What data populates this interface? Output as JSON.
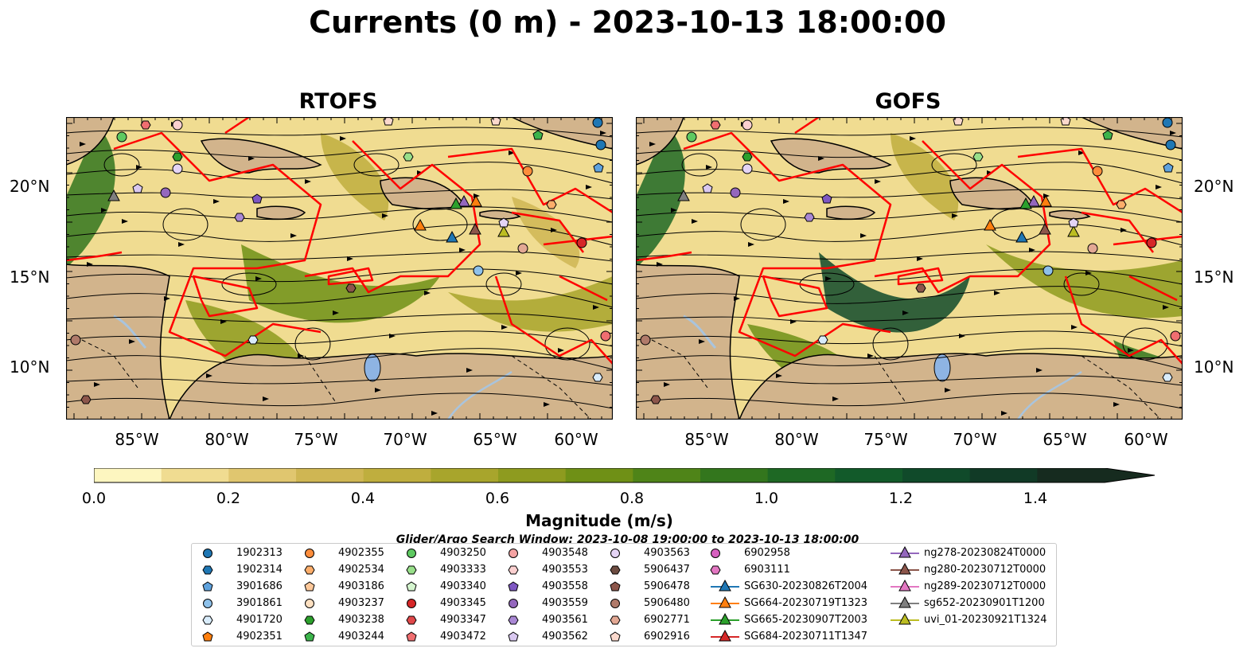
{
  "title": "Currents (0 m) - 2023-10-13 18:00:00",
  "panels": [
    {
      "title": "RTOFS"
    },
    {
      "title": "GOFS"
    }
  ],
  "axes": {
    "lat_labels": [
      "20°N",
      "15°N",
      "10°N"
    ],
    "lon_labels": [
      "85°W",
      "80°W",
      "75°W",
      "70°W",
      "65°W",
      "60°W"
    ]
  },
  "colorbar": {
    "label": "Magnitude (m/s)",
    "ticks": [
      "0.0",
      "0.2",
      "0.4",
      "0.6",
      "0.8",
      "1.0",
      "1.2",
      "1.4"
    ],
    "range": [
      0.0,
      1.5
    ],
    "extend": "max",
    "colors": [
      "#fdf6c0",
      "#f0dc91",
      "#e0c66f",
      "#cfb653",
      "#bfae3e",
      "#a8a52c",
      "#8e9b1f",
      "#6f9016",
      "#4f8418",
      "#33761d",
      "#1e6824",
      "#125a2a",
      "#104a2a",
      "#113a26",
      "#162b1f"
    ]
  },
  "map_colors": {
    "land": "#d2b48c",
    "lake": "#8eb4e3",
    "river": "#a9c4dd",
    "track": "#ff0000",
    "streamline": "#000000"
  },
  "search_window": "Glider/Argo Search Window: 2023-10-08 19:00:00 to 2023-10-13 18:00:00",
  "legend": {
    "columns": [
      [
        {
          "label": "1902313",
          "marker": "circle",
          "color": "#1f77b4"
        },
        {
          "label": "1902314",
          "marker": "hexagon",
          "color": "#1f77b4"
        },
        {
          "label": "3901686",
          "marker": "pentagon",
          "color": "#5fa2dd"
        },
        {
          "label": "3901861",
          "marker": "circle",
          "color": "#8ec1ea"
        },
        {
          "label": "4901720",
          "marker": "hexagon",
          "color": "#d9ecfb"
        },
        {
          "label": "4902351",
          "marker": "pentagon",
          "color": "#ff7f0e"
        }
      ],
      [
        {
          "label": "4902355",
          "marker": "circle",
          "color": "#fd8d3c"
        },
        {
          "label": "4902534",
          "marker": "hexagon",
          "color": "#fdae6b"
        },
        {
          "label": "4903186",
          "marker": "pentagon",
          "color": "#fdc89a"
        },
        {
          "label": "4903237",
          "marker": "circle",
          "color": "#fde0c1"
        },
        {
          "label": "4903238",
          "marker": "hexagon",
          "color": "#2ca02c"
        },
        {
          "label": "4903244",
          "marker": "pentagon",
          "color": "#3cb44b"
        }
      ],
      [
        {
          "label": "4903250",
          "marker": "circle",
          "color": "#5ec961"
        },
        {
          "label": "4903333",
          "marker": "hexagon",
          "color": "#98df8a"
        },
        {
          "label": "4903340",
          "marker": "pentagon",
          "color": "#d5f5cf"
        },
        {
          "label": "4903345",
          "marker": "circle",
          "color": "#d62728"
        },
        {
          "label": "4903347",
          "marker": "hexagon",
          "color": "#e0484a"
        },
        {
          "label": "4903472",
          "marker": "pentagon",
          "color": "#f06e70"
        }
      ],
      [
        {
          "label": "4903548",
          "marker": "circle",
          "color": "#f5a3a3"
        },
        {
          "label": "4903553",
          "marker": "hexagon",
          "color": "#fbd0d0"
        },
        {
          "label": "4903558",
          "marker": "pentagon",
          "color": "#7e57c2"
        },
        {
          "label": "4903559",
          "marker": "circle",
          "color": "#9467bd"
        },
        {
          "label": "4903561",
          "marker": "hexagon",
          "color": "#a987d4"
        },
        {
          "label": "4903562",
          "marker": "pentagon",
          "color": "#d9c8f0"
        }
      ],
      [
        {
          "label": "4903563",
          "marker": "circle",
          "color": "#e4d4f5"
        },
        {
          "label": "5906437",
          "marker": "hexagon",
          "color": "#6d4c41"
        },
        {
          "label": "5906478",
          "marker": "pentagon",
          "color": "#8c564b"
        },
        {
          "label": "5906480",
          "marker": "circle",
          "color": "#b07a6a"
        },
        {
          "label": "6902771",
          "marker": "hexagon",
          "color": "#e3a894"
        },
        {
          "label": "6902916",
          "marker": "pentagon",
          "color": "#fbd9cd"
        }
      ],
      [
        {
          "label": "6902958",
          "marker": "circle",
          "color": "#d65fbf"
        },
        {
          "label": "6903111",
          "marker": "hexagon",
          "color": "#e377c2"
        },
        {
          "label": "SG630-20230826T2004",
          "marker": "triangle",
          "color": "#1f77b4"
        },
        {
          "label": "SG664-20230719T1323",
          "marker": "triangle",
          "color": "#ff7f0e"
        },
        {
          "label": "SG665-20230907T2003",
          "marker": "triangle",
          "color": "#2ca02c"
        },
        {
          "label": "SG684-20230711T1347",
          "marker": "triangle",
          "color": "#d62728"
        }
      ],
      [
        {
          "label": "ng278-20230824T0000",
          "marker": "triangle",
          "color": "#9467bd"
        },
        {
          "label": "ng280-20230712T0000",
          "marker": "triangle",
          "color": "#8c564b"
        },
        {
          "label": "ng289-20230712T0000",
          "marker": "triangle",
          "color": "#e377c2"
        },
        {
          "label": "sg652-20230901T1200",
          "marker": "triangle",
          "color": "#7f7f7f"
        },
        {
          "label": "uvi_01-20230921T1324",
          "marker": "triangle",
          "color": "#bcbd22"
        }
      ]
    ]
  }
}
